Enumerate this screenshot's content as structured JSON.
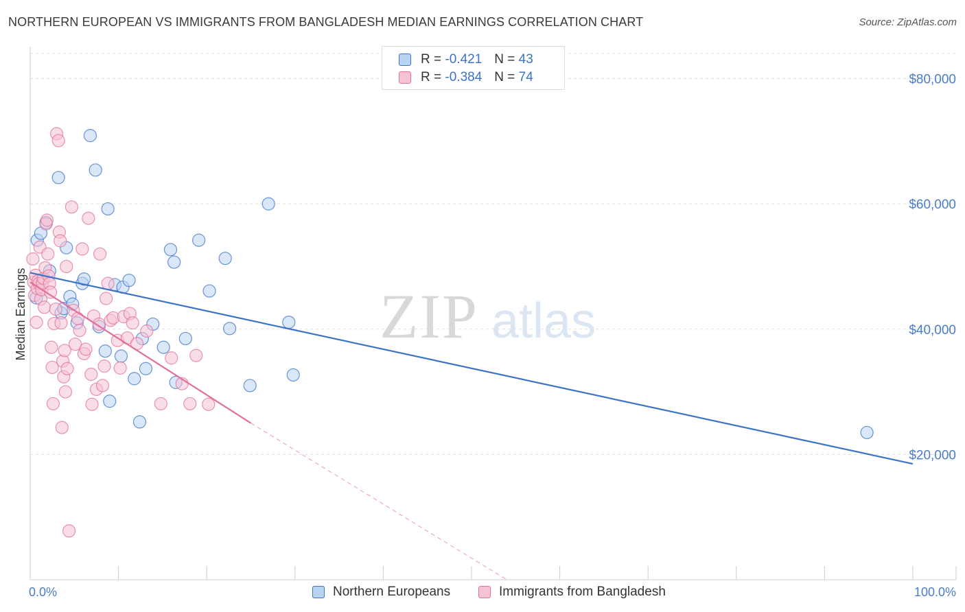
{
  "title": "NORTHERN EUROPEAN VS IMMIGRANTS FROM BANGLADESH MEDIAN EARNINGS CORRELATION CHART",
  "source": "Source: ZipAtlas.com",
  "watermark": {
    "zip": "ZIP",
    "atlas": "atlas"
  },
  "legend": {
    "rows": [
      {
        "r_label": "R =",
        "r_value": "-0.421",
        "n_label": "N =",
        "n_value": "43"
      },
      {
        "r_label": "R =",
        "r_value": "-0.384",
        "n_label": "N =",
        "n_value": "74"
      }
    ]
  },
  "bottom_legend": {
    "series1": "Northern Europeans",
    "series2": "Immigrants from Bangladesh"
  },
  "colors": {
    "blue": "#3b73c6",
    "blue_fill": "#b9d3f3",
    "pink": "#e0709a",
    "pink_fill": "#f6c3d3",
    "grid": "#dddddd"
  },
  "chart_data": {
    "type": "scatter",
    "title": "NORTHERN EUROPEAN VS IMMIGRANTS FROM BANGLADESH MEDIAN EARNINGS CORRELATION CHART",
    "xlabel": "",
    "ylabel": "Median Earnings",
    "xlim": [
      0,
      100
    ],
    "ylim": [
      0,
      84000
    ],
    "x_tick_labels": [
      "0.0%",
      "100.0%"
    ],
    "y_ticks": [
      20000,
      40000,
      60000,
      80000
    ],
    "y_tick_labels": [
      "$20,000",
      "$40,000",
      "$60,000",
      "$80,000"
    ],
    "grid": true,
    "series": [
      {
        "name": "Northern Europeans",
        "r": -0.421,
        "n": 43,
        "trend": {
          "x": [
            0,
            100
          ],
          "y": [
            49000,
            18500
          ]
        },
        "points": [
          [
            0.7,
            45000
          ],
          [
            0.8,
            54200
          ],
          [
            1.2,
            55300
          ],
          [
            1.8,
            57000
          ],
          [
            2.2,
            49300
          ],
          [
            3.2,
            64200
          ],
          [
            3.5,
            42600
          ],
          [
            3.8,
            43300
          ],
          [
            4.1,
            53000
          ],
          [
            4.5,
            45200
          ],
          [
            4.8,
            44000
          ],
          [
            5.3,
            41000
          ],
          [
            5.9,
            47300
          ],
          [
            6.1,
            48000
          ],
          [
            6.8,
            70900
          ],
          [
            7.4,
            65400
          ],
          [
            7.8,
            40400
          ],
          [
            8.5,
            36500
          ],
          [
            8.8,
            59200
          ],
          [
            9.0,
            28500
          ],
          [
            9.6,
            47100
          ],
          [
            10.3,
            35700
          ],
          [
            10.5,
            46700
          ],
          [
            11.2,
            47800
          ],
          [
            11.8,
            32100
          ],
          [
            12.4,
            25200
          ],
          [
            12.7,
            38500
          ],
          [
            13.1,
            33700
          ],
          [
            13.9,
            40800
          ],
          [
            15.1,
            37100
          ],
          [
            15.9,
            52700
          ],
          [
            16.3,
            50700
          ],
          [
            16.5,
            31500
          ],
          [
            17.6,
            38500
          ],
          [
            19.1,
            54200
          ],
          [
            20.3,
            46100
          ],
          [
            22.1,
            51300
          ],
          [
            22.6,
            40100
          ],
          [
            24.9,
            31000
          ],
          [
            27.0,
            60000
          ],
          [
            29.3,
            41100
          ],
          [
            29.8,
            32700
          ],
          [
            94.8,
            23500
          ]
        ]
      },
      {
        "name": "Immigrants from Bangladesh",
        "r": -0.384,
        "n": 74,
        "trend": {
          "x": [
            0,
            25
          ],
          "y": [
            47500,
            25000
          ]
        },
        "trend_dashed": {
          "x": [
            25,
            54
          ],
          "y": [
            25000,
            0
          ]
        },
        "points": [
          [
            0.3,
            51200
          ],
          [
            0.4,
            47500
          ],
          [
            0.5,
            45400
          ],
          [
            0.6,
            48600
          ],
          [
            0.7,
            41100
          ],
          [
            0.8,
            46500
          ],
          [
            0.9,
            47700
          ],
          [
            1.0,
            47300
          ],
          [
            1.1,
            53100
          ],
          [
            1.2,
            44800
          ],
          [
            1.3,
            46300
          ],
          [
            1.4,
            47400
          ],
          [
            1.5,
            48100
          ],
          [
            1.6,
            43500
          ],
          [
            1.7,
            49800
          ],
          [
            1.8,
            56800
          ],
          [
            1.9,
            57400
          ],
          [
            2.0,
            52000
          ],
          [
            2.1,
            48500
          ],
          [
            2.2,
            47300
          ],
          [
            2.3,
            45900
          ],
          [
            2.4,
            37100
          ],
          [
            2.5,
            33900
          ],
          [
            2.6,
            28100
          ],
          [
            2.7,
            40900
          ],
          [
            2.9,
            43200
          ],
          [
            3.0,
            71200
          ],
          [
            3.2,
            70100
          ],
          [
            3.3,
            55500
          ],
          [
            3.4,
            54100
          ],
          [
            3.5,
            41000
          ],
          [
            3.6,
            24300
          ],
          [
            3.7,
            34900
          ],
          [
            3.8,
            32400
          ],
          [
            3.9,
            36600
          ],
          [
            4.0,
            30000
          ],
          [
            4.1,
            50000
          ],
          [
            4.2,
            33700
          ],
          [
            4.4,
            7800
          ],
          [
            4.7,
            59500
          ],
          [
            4.9,
            43000
          ],
          [
            5.1,
            37600
          ],
          [
            5.4,
            41700
          ],
          [
            5.6,
            39800
          ],
          [
            5.9,
            52800
          ],
          [
            6.1,
            36100
          ],
          [
            6.3,
            36800
          ],
          [
            6.6,
            57700
          ],
          [
            6.9,
            32800
          ],
          [
            7.0,
            28000
          ],
          [
            7.2,
            42100
          ],
          [
            7.5,
            30400
          ],
          [
            7.8,
            40800
          ],
          [
            7.9,
            52000
          ],
          [
            8.2,
            31000
          ],
          [
            8.4,
            34100
          ],
          [
            8.6,
            44900
          ],
          [
            8.8,
            47300
          ],
          [
            9.1,
            41400
          ],
          [
            9.4,
            41800
          ],
          [
            9.9,
            38200
          ],
          [
            10.2,
            33800
          ],
          [
            10.6,
            42000
          ],
          [
            11.0,
            38600
          ],
          [
            11.3,
            42500
          ],
          [
            11.6,
            41000
          ],
          [
            12.1,
            37700
          ],
          [
            13.2,
            39700
          ],
          [
            14.8,
            28100
          ],
          [
            16.0,
            35400
          ],
          [
            17.2,
            31300
          ],
          [
            18.1,
            28100
          ],
          [
            18.8,
            35800
          ],
          [
            20.2,
            28000
          ]
        ]
      }
    ]
  }
}
